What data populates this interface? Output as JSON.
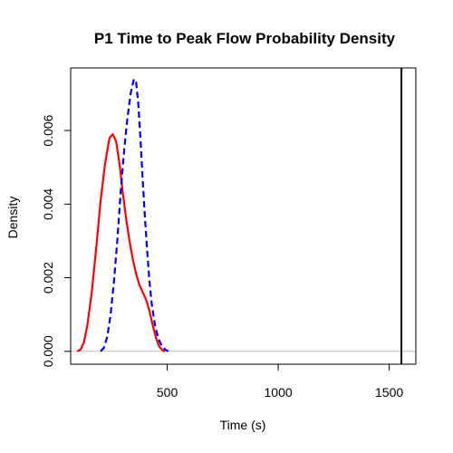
{
  "chart_data": {
    "type": "line",
    "title": "P1 Time to Peak Flow Probability Density",
    "xlabel": "Time (s)",
    "ylabel": "Density",
    "xlim": [
      65,
      1620
    ],
    "ylim": [
      -0.00035,
      0.0077
    ],
    "x_ticks": [
      {
        "value": 500,
        "label": "500"
      },
      {
        "value": 1000,
        "label": "1000"
      },
      {
        "value": 1500,
        "label": "1500"
      }
    ],
    "y_ticks": [
      {
        "value": 0.0,
        "label": "0.000"
      },
      {
        "value": 0.002,
        "label": "0.002"
      },
      {
        "value": 0.004,
        "label": "0.004"
      },
      {
        "value": 0.006,
        "label": "0.006"
      }
    ],
    "baseline": {
      "y": 0.0,
      "color": "#bebebe"
    },
    "vline": {
      "x": 1555,
      "color": "#000000"
    },
    "series": [
      {
        "color": "#ff0000",
        "dash": "solid",
        "points": [
          [
            95,
            0.0
          ],
          [
            110,
            5e-05
          ],
          [
            125,
            0.00025
          ],
          [
            140,
            0.0007
          ],
          [
            160,
            0.0016
          ],
          [
            180,
            0.0028
          ],
          [
            200,
            0.0041
          ],
          [
            220,
            0.0051
          ],
          [
            240,
            0.0058
          ],
          [
            255,
            0.0059
          ],
          [
            270,
            0.0057
          ],
          [
            285,
            0.0051
          ],
          [
            300,
            0.0043
          ],
          [
            315,
            0.0036
          ],
          [
            330,
            0.003
          ],
          [
            345,
            0.0025
          ],
          [
            360,
            0.0021
          ],
          [
            375,
            0.0018
          ],
          [
            390,
            0.0016
          ],
          [
            405,
            0.0014
          ],
          [
            420,
            0.0011
          ],
          [
            435,
            0.0007
          ],
          [
            450,
            0.00035
          ],
          [
            465,
            0.00012
          ],
          [
            480,
            2e-05
          ],
          [
            490,
            0.0
          ]
        ]
      },
      {
        "color": "#0000ff",
        "dash": "dashed",
        "points": [
          [
            200,
            0.0
          ],
          [
            215,
            0.0001
          ],
          [
            230,
            0.0004
          ],
          [
            245,
            0.001
          ],
          [
            260,
            0.0019
          ],
          [
            275,
            0.003
          ],
          [
            290,
            0.0043
          ],
          [
            305,
            0.0054
          ],
          [
            320,
            0.0063
          ],
          [
            335,
            0.007
          ],
          [
            350,
            0.0074
          ],
          [
            360,
            0.0073
          ],
          [
            370,
            0.0067
          ],
          [
            380,
            0.0057
          ],
          [
            390,
            0.0046
          ],
          [
            400,
            0.0036
          ],
          [
            410,
            0.0027
          ],
          [
            420,
            0.0019
          ],
          [
            430,
            0.0013
          ],
          [
            445,
            0.0007
          ],
          [
            460,
            0.00035
          ],
          [
            475,
            0.00015
          ],
          [
            490,
            5e-05
          ],
          [
            505,
            0.0
          ]
        ]
      }
    ]
  }
}
